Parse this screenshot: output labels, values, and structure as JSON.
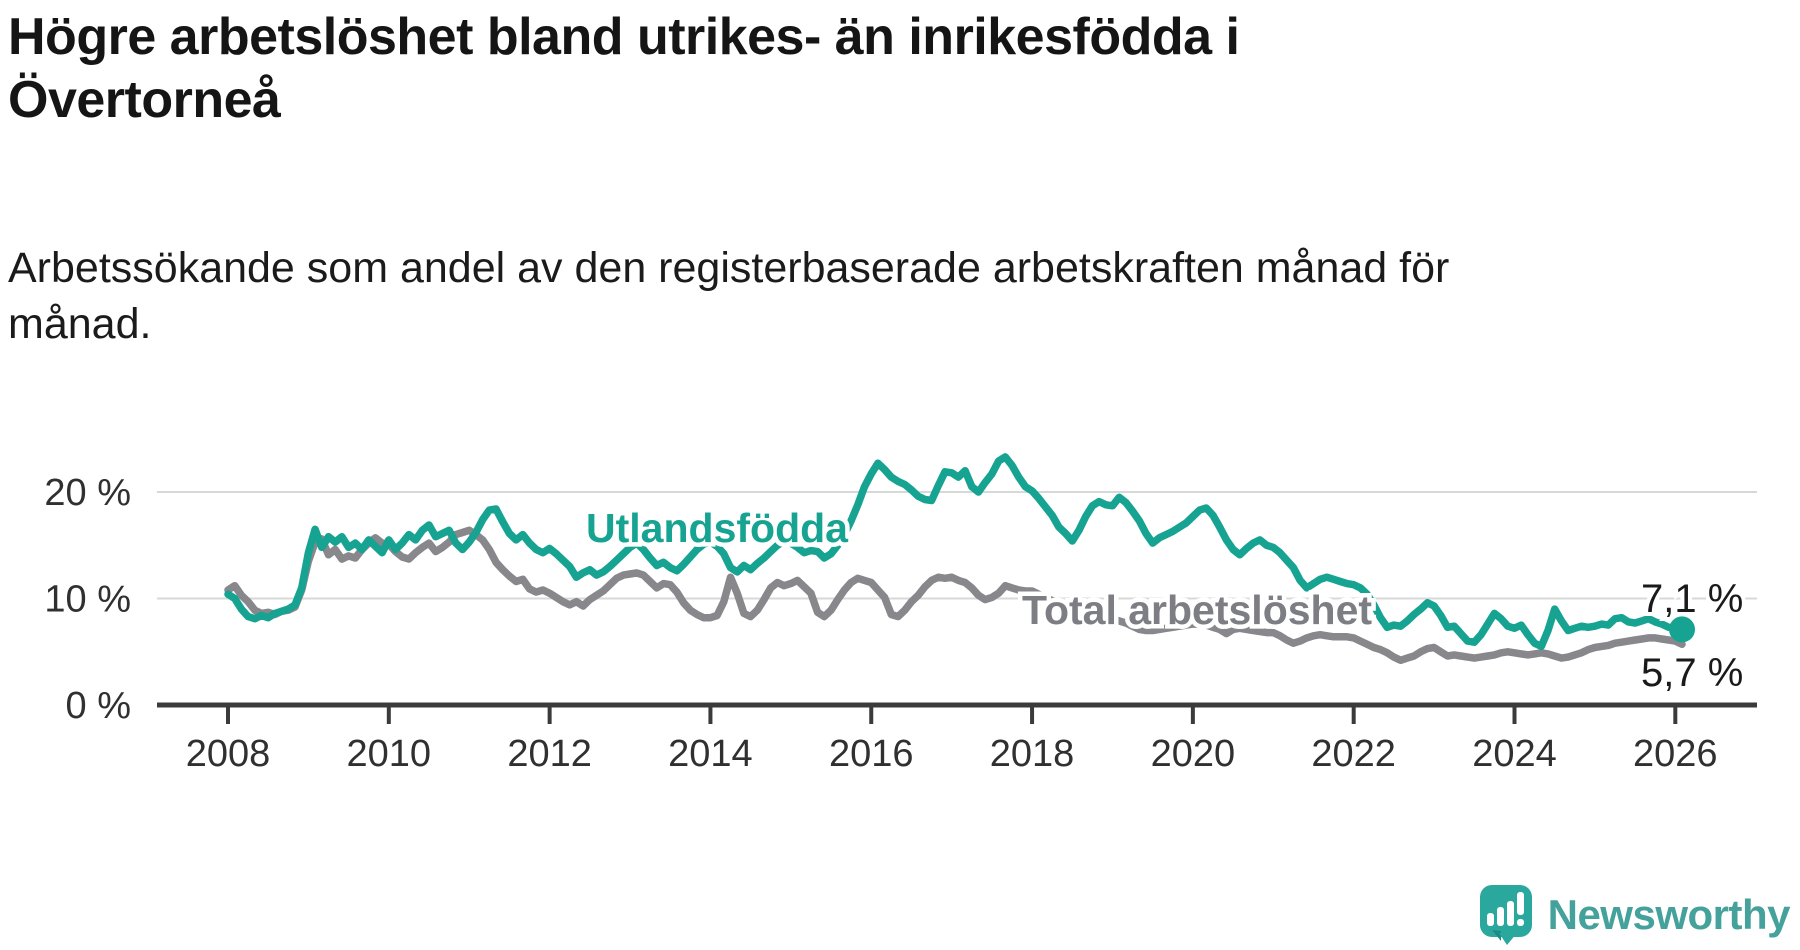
{
  "title": "Högre arbetslöshet bland utrikes- än inrikesfödda i Övertorneå",
  "subtitle": "Arbetssökande som andel av den registerbaserade arbetskraften månad för månad.",
  "branding": {
    "logo_text": "Newsworthy",
    "logo_icon": "newsworthy-speech-bubble-bar-chart-icon"
  },
  "colors": {
    "foreign_born_line": "#17a392",
    "total_line": "#87878c",
    "total_label": "#7d7d84",
    "value_label": "#1a1a1a",
    "axis": "#3b3b3b",
    "gridline": "#d8d8d8",
    "tick_label": "#303030",
    "title_text": "#151515",
    "logo_teal": "#2ba89e",
    "logo_teal_dark": "#1b8c84",
    "logo_text_color": "#45a19b"
  },
  "chart_data": {
    "type": "line",
    "frequency": "monthly",
    "x_start": "2008-01",
    "x_end": "2026-02",
    "x_tick_labels": [
      "2008",
      "2010",
      "2012",
      "2014",
      "2016",
      "2018",
      "2020",
      "2022",
      "2024",
      "2026"
    ],
    "y_ticks": [
      0,
      10,
      20
    ],
    "y_tick_labels": [
      "0 %",
      "10 %",
      "20 %"
    ],
    "ylim": [
      0,
      24.5
    ],
    "grid": "horizontal",
    "legend_position": "inline-labels",
    "series": [
      {
        "name": "Total arbetslöshet",
        "color": "#87878c",
        "end_label": "5,7 %",
        "end_value": 5.7,
        "values": [
          10.8,
          11.2,
          10.3,
          9.7,
          8.9,
          8.6,
          8.7,
          8.5,
          8.8,
          8.9,
          9.2,
          10.8,
          13.5,
          15.3,
          15.6,
          14.1,
          14.6,
          13.7,
          14.0,
          13.8,
          14.6,
          15.2,
          15.7,
          15.2,
          15.1,
          14.4,
          13.9,
          13.7,
          14.3,
          14.8,
          15.2,
          14.4,
          14.8,
          15.3,
          16.0,
          16.2,
          16.4,
          16.0,
          15.5,
          14.6,
          13.4,
          12.7,
          12.1,
          11.6,
          11.8,
          10.9,
          10.6,
          10.8,
          10.5,
          10.1,
          9.7,
          9.4,
          9.7,
          9.3,
          9.9,
          10.3,
          10.7,
          11.3,
          11.9,
          12.2,
          12.3,
          12.4,
          12.2,
          11.6,
          11.0,
          11.4,
          11.3,
          10.6,
          9.6,
          8.9,
          8.5,
          8.2,
          8.2,
          8.4,
          9.7,
          12.0,
          10.5,
          8.6,
          8.3,
          8.9,
          9.9,
          11.0,
          11.5,
          11.2,
          11.4,
          11.7,
          11.1,
          10.5,
          8.7,
          8.3,
          8.9,
          9.9,
          10.8,
          11.5,
          11.9,
          11.7,
          11.5,
          10.8,
          10.1,
          8.5,
          8.3,
          8.9,
          9.7,
          10.3,
          11.1,
          11.7,
          12.0,
          11.9,
          12.0,
          11.7,
          11.5,
          11.0,
          10.3,
          9.9,
          10.1,
          10.5,
          11.2,
          11.0,
          10.8,
          10.7,
          10.7,
          10.4,
          10.1,
          9.8,
          9.5,
          9.2,
          8.9,
          8.7,
          8.5,
          8.3,
          8.2,
          8.2,
          8.1,
          7.9,
          7.7,
          7.4,
          7.1,
          7.0,
          7.0,
          7.1,
          7.2,
          7.3,
          7.4,
          7.5,
          7.6,
          7.6,
          7.5,
          7.3,
          7.1,
          6.7,
          7.1,
          7.2,
          7.1,
          7.0,
          6.9,
          6.8,
          6.8,
          6.5,
          6.1,
          5.8,
          6.0,
          6.3,
          6.5,
          6.6,
          6.5,
          6.4,
          6.4,
          6.4,
          6.3,
          6.0,
          5.7,
          5.4,
          5.2,
          4.9,
          4.5,
          4.2,
          4.4,
          4.6,
          5.0,
          5.3,
          5.4,
          5.0,
          4.6,
          4.7,
          4.6,
          4.5,
          4.4,
          4.5,
          4.6,
          4.7,
          4.9,
          5.0,
          4.9,
          4.8,
          4.7,
          4.8,
          4.9,
          4.8,
          4.6,
          4.4,
          4.5,
          4.7,
          4.9,
          5.2,
          5.4,
          5.5,
          5.6,
          5.8,
          5.9,
          6.0,
          6.1,
          6.2,
          6.3,
          6.3,
          6.2,
          6.1,
          6.0,
          5.7
        ]
      },
      {
        "name": "Utlandsfödda",
        "color": "#17a392",
        "end_label": "7,1 %",
        "end_value": 7.1,
        "end_marker": true,
        "values": [
          10.4,
          10.0,
          9.0,
          8.3,
          8.1,
          8.4,
          8.2,
          8.6,
          8.8,
          9.0,
          9.4,
          11.0,
          14.3,
          16.5,
          14.8,
          15.8,
          15.3,
          15.8,
          14.8,
          15.2,
          14.6,
          15.5,
          14.9,
          14.3,
          15.5,
          14.6,
          15.2,
          16.0,
          15.5,
          16.4,
          16.9,
          15.8,
          16.1,
          16.4,
          15.2,
          14.6,
          15.3,
          16.2,
          17.4,
          18.3,
          18.4,
          17.2,
          16.1,
          15.5,
          16.0,
          15.2,
          14.6,
          14.3,
          14.7,
          14.2,
          13.6,
          13.0,
          12.0,
          12.4,
          12.7,
          12.2,
          12.5,
          13.0,
          13.6,
          14.2,
          14.8,
          15.2,
          14.6,
          13.8,
          13.1,
          13.4,
          12.9,
          12.6,
          13.2,
          13.9,
          14.6,
          15.1,
          15.3,
          14.9,
          14.2,
          12.9,
          12.5,
          13.1,
          12.7,
          13.3,
          13.8,
          14.4,
          15.0,
          15.4,
          15.2,
          14.8,
          14.3,
          14.5,
          14.4,
          13.8,
          14.2,
          15.0,
          16.0,
          17.3,
          18.8,
          20.5,
          21.7,
          22.7,
          22.1,
          21.4,
          21.0,
          20.7,
          20.2,
          19.6,
          19.3,
          19.2,
          20.6,
          21.9,
          21.8,
          21.4,
          22.0,
          20.5,
          20.0,
          20.9,
          21.7,
          22.9,
          23.3,
          22.5,
          21.4,
          20.5,
          20.1,
          19.4,
          18.6,
          17.8,
          16.7,
          16.1,
          15.4,
          16.4,
          17.7,
          18.7,
          19.1,
          18.8,
          18.7,
          19.5,
          19.0,
          18.2,
          17.3,
          16.1,
          15.2,
          15.7,
          16.0,
          16.3,
          16.7,
          17.1,
          17.7,
          18.3,
          18.5,
          17.8,
          16.7,
          15.5,
          14.6,
          14.1,
          14.7,
          15.2,
          15.5,
          15.0,
          14.8,
          14.3,
          13.6,
          12.9,
          11.7,
          11.0,
          11.4,
          11.8,
          12.0,
          11.8,
          11.6,
          11.4,
          11.3,
          11.0,
          10.4,
          9.4,
          8.2,
          7.3,
          7.5,
          7.4,
          7.9,
          8.5,
          9.0,
          9.6,
          9.3,
          8.4,
          7.3,
          7.4,
          6.7,
          6.0,
          5.9,
          6.6,
          7.6,
          8.6,
          8.1,
          7.4,
          7.2,
          7.5,
          6.6,
          5.8,
          5.5,
          7.0,
          9.0,
          7.9,
          7.0,
          7.2,
          7.4,
          7.3,
          7.4,
          7.6,
          7.5,
          8.1,
          8.2,
          7.8,
          7.7,
          7.9,
          8.1,
          7.8,
          7.6,
          7.3,
          7.2,
          7.1
        ]
      }
    ]
  }
}
